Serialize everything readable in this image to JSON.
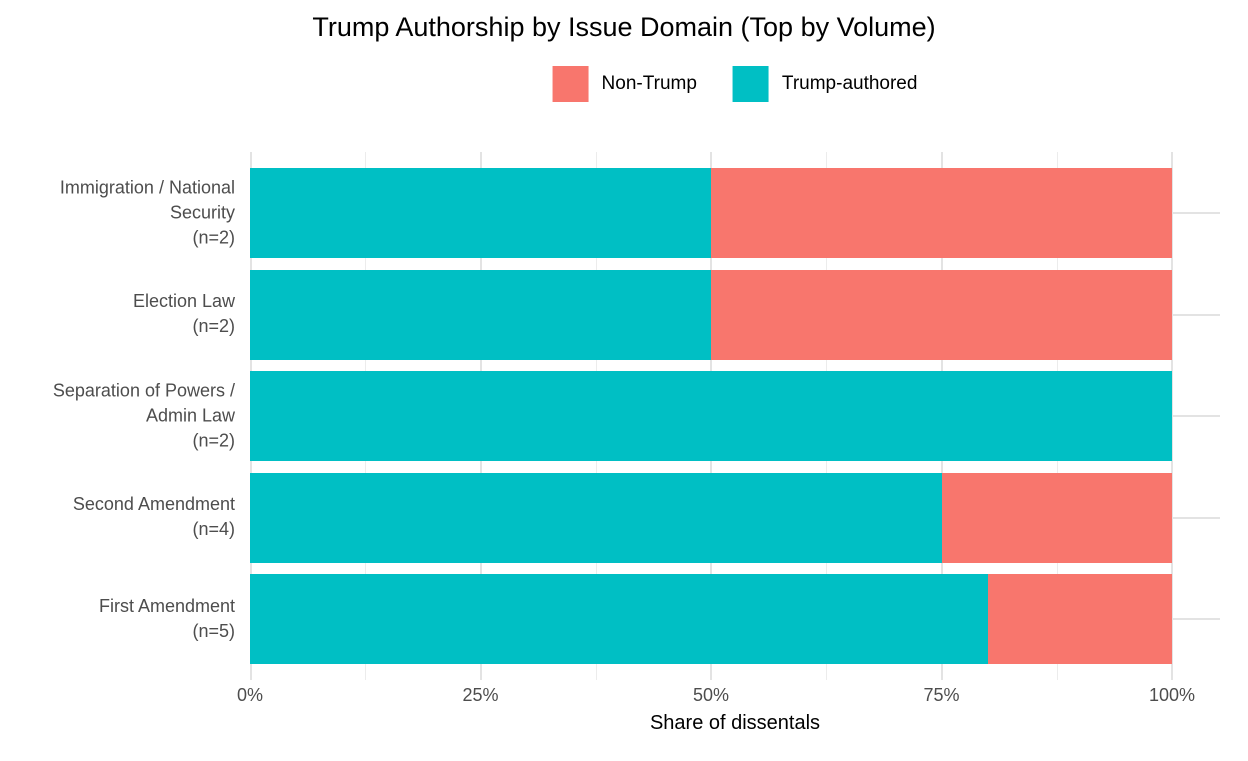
{
  "chart_data": {
    "type": "bar",
    "orientation": "horizontal",
    "stacked": true,
    "title": "Trump Authorship by Issue Domain (Top by Volume)",
    "xlabel": "Share of dissentals",
    "ylabel": "",
    "xlim": [
      0,
      100
    ],
    "x_ticks": [
      "0%",
      "25%",
      "50%",
      "75%",
      "100%"
    ],
    "grid": true,
    "legend_position": "top-center",
    "background_color": "#ffffff",
    "gridline_color": "#e3e3e3",
    "categories": [
      "Immigration / National\nSecurity\n(n=2)",
      "Election Law\n(n=2)",
      "Separation of Powers /\nAdmin Law\n(n=2)",
      "Second Amendment\n(n=4)",
      "First Amendment\n(n=5)"
    ],
    "series": [
      {
        "name": "Trump-authored",
        "color": "#00BFC4",
        "values": [
          50,
          50,
          100,
          75,
          80
        ]
      },
      {
        "name": "Non-Trump",
        "color": "#F8766D",
        "values": [
          50,
          50,
          0,
          25,
          20
        ]
      }
    ],
    "legend": [
      {
        "label": "Non-Trump",
        "color": "#F8766D"
      },
      {
        "label": "Trump-authored",
        "color": "#00BFC4"
      }
    ]
  }
}
